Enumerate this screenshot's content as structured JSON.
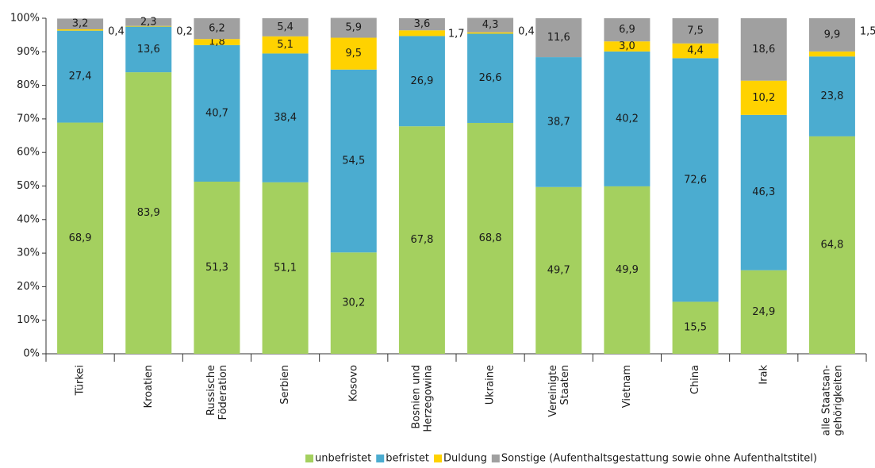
{
  "chart_data": {
    "type": "stacked_bar",
    "categories": [
      "Türkei",
      "Kroatien",
      "Russische\nFöderation",
      "Serbien",
      "Kosovo",
      "Bosnien und\nHerzegowina",
      "Ukraine",
      "Vereinigte\nStaaten",
      "Vietnam",
      "China",
      "Irak",
      "alle Staatsan-\ngehörigkeiten"
    ],
    "series": [
      {
        "name": "unbefristet",
        "color": "#a4d05f",
        "values": [
          68.9,
          83.9,
          51.3,
          51.1,
          30.2,
          67.8,
          68.8,
          49.7,
          49.9,
          15.5,
          24.9,
          64.8
        ],
        "value_labels": [
          "68,9",
          "83,9",
          "51,3",
          "51,1",
          "30,2",
          "67,8",
          "68,8",
          "49,7",
          "49,9",
          "15,5",
          "24,9",
          "64,8"
        ]
      },
      {
        "name": "befristet",
        "color": "#4bacd0",
        "values": [
          27.4,
          13.6,
          40.7,
          38.4,
          54.5,
          26.9,
          26.6,
          38.7,
          40.2,
          72.6,
          46.3,
          23.8
        ],
        "value_labels": [
          "27,4",
          "13,6",
          "40,7",
          "38,4",
          "54,5",
          "26,9",
          "26,6",
          "38,7",
          "40,2",
          "72,6",
          "46,3",
          "23,8"
        ]
      },
      {
        "name": "Duldung",
        "color": "#ffd200",
        "values": [
          0.4,
          0.2,
          1.8,
          5.1,
          9.5,
          1.7,
          0.4,
          null,
          3.0,
          4.4,
          10.2,
          1.5
        ],
        "value_labels": [
          "0,4",
          "0,2",
          "1,8",
          "5,1",
          "9,5",
          "1,7",
          "0,4",
          null,
          "3,0",
          "4,4",
          "10,2",
          "1,5"
        ]
      },
      {
        "name": "Sonstige (Aufenthaltsgestattung sowie ohne Aufenthaltstitel)",
        "color": "#a0a0a0",
        "values": [
          3.2,
          2.3,
          6.2,
          5.4,
          5.9,
          3.6,
          4.3,
          11.6,
          6.9,
          7.5,
          18.6,
          9.9
        ],
        "value_labels": [
          "3,2",
          "2,3",
          "6,2",
          "5,4",
          "5,9",
          "3,6",
          "4,3",
          "11,6",
          "6,9",
          "7,5",
          "18,6",
          "9,9"
        ]
      }
    ],
    "ylim": [
      0,
      100
    ],
    "yticks": [
      {
        "value": 0,
        "label": "0%"
      },
      {
        "value": 10,
        "label": "10%"
      },
      {
        "value": 20,
        "label": "20%"
      },
      {
        "value": 30,
        "label": "30%"
      },
      {
        "value": 40,
        "label": "40%"
      },
      {
        "value": 50,
        "label": "50%"
      },
      {
        "value": 60,
        "label": "60%"
      },
      {
        "value": 70,
        "label": "70%"
      },
      {
        "value": 80,
        "label": "80%"
      },
      {
        "value": 90,
        "label": "90%"
      },
      {
        "value": 100,
        "label": "100%"
      }
    ],
    "grid": false,
    "legend": "bottom-right"
  }
}
